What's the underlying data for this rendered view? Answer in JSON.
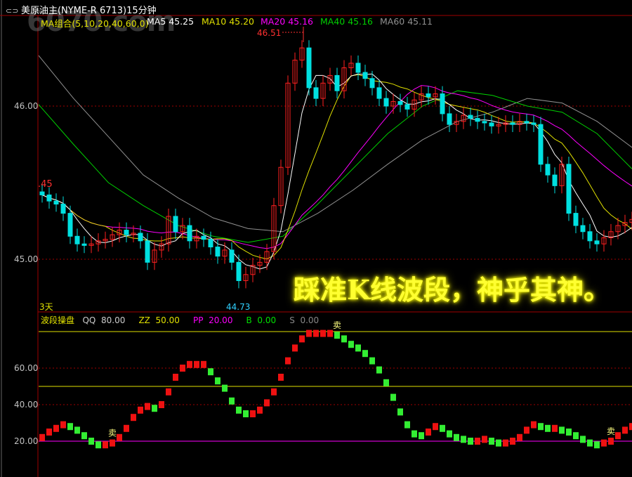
{
  "header": {
    "title": "美原油主(NYME-R 6713)15分钟",
    "link_icon": "link-icon"
  },
  "watermark": "6070.com",
  "ma_labels": {
    "group": "MA组合(5,10,20,40,60,0)",
    "ma5": "MA5 45.25",
    "ma10": "MA10 45.20",
    "ma20": "MA20 45.16",
    "ma40": "MA40 45.16",
    "ma60": "MA60 45.11"
  },
  "colors": {
    "up": "#ff2020",
    "down": "#00e0e0",
    "ma5": "#ffffff",
    "ma10": "#e0e000",
    "ma20": "#ff00ff",
    "ma40": "#00d000",
    "ma60": "#909090",
    "ind_up": "#ee1111",
    "ind_down": "#33ee33"
  },
  "price_axis": {
    "ticks": [
      "46.00",
      "45.00"
    ],
    "partial_label": ".45",
    "period_label": "3天"
  },
  "marks": {
    "high": "46.51",
    "low": "44.73"
  },
  "indicator": {
    "name": "波段操盘",
    "qq_label": "QQ",
    "qq": "80.00",
    "zz_label": "ZZ",
    "zz": "50.00",
    "pp_label": "PP",
    "pp": "20.00",
    "b_label": "B",
    "b": "0.00",
    "s_label": "S",
    "s": "0.00",
    "ticks": [
      "60.00",
      "40.00",
      "20.00"
    ],
    "sell_label": "卖"
  },
  "slogan": "踩准K线波段，神乎其神。",
  "chart_data": [
    {
      "type": "candlestick",
      "title": "美原油主(NYME-R 6713)15分钟",
      "ylim": [
        44.55,
        46.7
      ],
      "yticks": [
        46.0,
        45.0
      ],
      "grid": "dashed",
      "closes": [
        45.42,
        45.38,
        45.36,
        45.3,
        45.15,
        45.1,
        45.09,
        45.1,
        45.12,
        45.13,
        45.16,
        45.19,
        45.16,
        45.17,
        45.12,
        44.98,
        45.06,
        45.1,
        45.28,
        45.18,
        45.22,
        45.12,
        45.15,
        45.13,
        45.08,
        45.02,
        45.06,
        44.98,
        44.86,
        44.9,
        44.96,
        44.98,
        45.05,
        45.35,
        45.6,
        46.15,
        46.3,
        46.38,
        46.12,
        46.05,
        46.15,
        46.2,
        46.1,
        46.25,
        46.28,
        46.22,
        46.18,
        46.12,
        46.05,
        46.0,
        46.03,
        46.01,
        45.98,
        46.04,
        46.08,
        46.06,
        46.08,
        45.95,
        45.88,
        45.9,
        45.94,
        45.92,
        45.9,
        45.89,
        45.87,
        45.88,
        45.89,
        45.88,
        45.9,
        45.89,
        45.88,
        45.62,
        45.55,
        45.48,
        45.62,
        45.3,
        45.22,
        45.18,
        45.12,
        45.1,
        45.14,
        45.18,
        45.22,
        45.24,
        45.26
      ],
      "ma40": [
        46.01,
        45.75,
        45.5,
        45.35,
        45.22,
        45.15,
        45.11,
        45.15,
        45.36,
        45.59,
        45.82,
        46.0,
        46.1,
        46.07,
        46.0,
        45.96,
        45.82,
        45.59
      ],
      "ma60": [
        46.33,
        46.05,
        45.8,
        45.55,
        45.4,
        45.27,
        45.2,
        45.18,
        45.3,
        45.45,
        45.62,
        45.78,
        45.9,
        45.96,
        46.05,
        46.02,
        45.9,
        45.73
      ],
      "high": 46.51,
      "low": 44.73
    },
    {
      "type": "bar",
      "title": "波段操盘",
      "ylim": [
        0,
        85
      ],
      "yticks": [
        60,
        40,
        20
      ],
      "reference_lines": {
        "QQ": 80,
        "ZZ": 50,
        "PP": 20
      },
      "values": [
        22,
        25,
        27,
        29,
        28,
        26,
        23,
        20,
        18,
        18,
        19,
        22,
        27,
        33,
        37,
        39,
        38,
        40,
        47,
        55,
        60,
        62,
        62,
        62,
        58,
        53,
        49,
        42,
        37,
        35,
        35,
        37,
        41,
        47,
        55,
        64,
        71,
        76,
        79,
        79,
        79,
        79,
        78,
        76,
        73,
        71,
        68,
        64,
        59,
        52,
        44,
        36,
        29,
        24,
        23,
        25,
        28,
        27,
        24,
        22,
        21,
        20,
        20,
        21,
        20,
        19,
        19,
        20,
        22,
        26,
        29,
        28,
        27,
        27,
        26,
        25,
        23,
        21,
        19,
        18,
        19,
        20,
        23,
        26,
        28
      ],
      "sell_signals": [
        10,
        42,
        81
      ]
    }
  ]
}
